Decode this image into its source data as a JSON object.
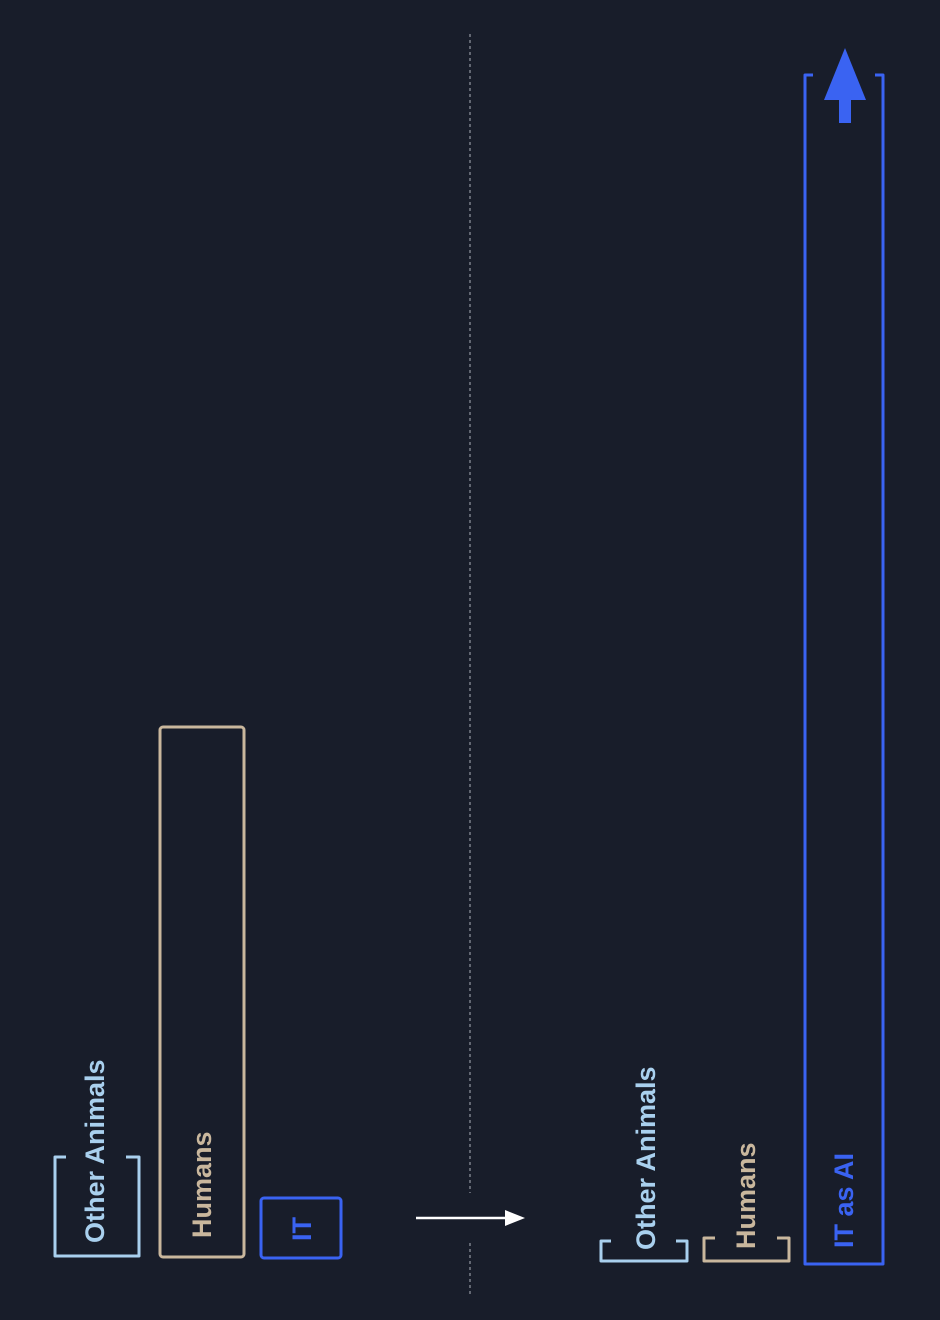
{
  "colors": {
    "background": "#181d2a",
    "other_animals": "#a9d0ee",
    "humans": "#c9b79d",
    "it": "#3a63f2",
    "divider": "#8a8f9a",
    "arrow": "#ffffff"
  },
  "before": {
    "other_animals_label": "Other Animals",
    "humans_label": "Humans",
    "it_label": "IT"
  },
  "after": {
    "other_animals_label": "Other Animals",
    "humans_label": "Humans",
    "it_label": "IT as AI"
  },
  "icons": {
    "transition": "right-arrow-icon",
    "growth": "up-arrow-icon"
  }
}
